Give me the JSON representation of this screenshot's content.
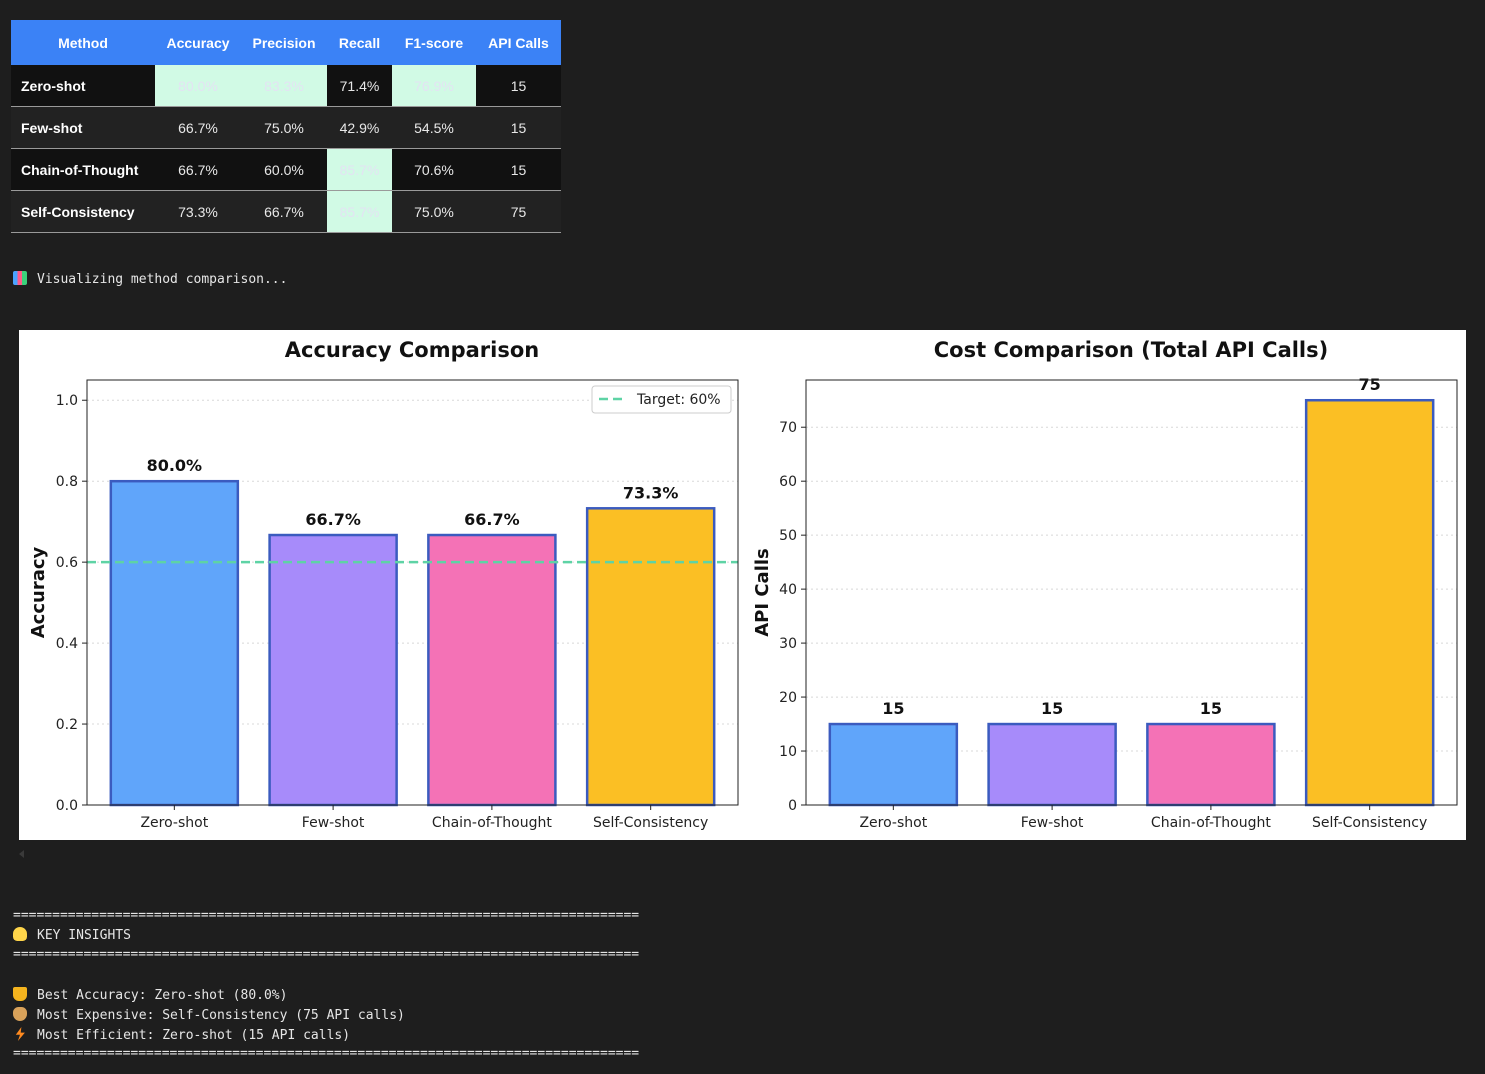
{
  "table": {
    "headers": [
      "Method",
      "Accuracy",
      "Precision",
      "Recall",
      "F1-score",
      "API Calls"
    ],
    "rows": [
      {
        "method": "Zero-shot",
        "accuracy": "80.0%",
        "precision": "83.3%",
        "recall": "71.4%",
        "f1": "76.9%",
        "api_calls": "15"
      },
      {
        "method": "Few-shot",
        "accuracy": "66.7%",
        "precision": "75.0%",
        "recall": "42.9%",
        "f1": "54.5%",
        "api_calls": "15"
      },
      {
        "method": "Chain-of-Thought",
        "accuracy": "66.7%",
        "precision": "60.0%",
        "recall": "85.7%",
        "f1": "70.6%",
        "api_calls": "15"
      },
      {
        "method": "Self-Consistency",
        "accuracy": "73.3%",
        "precision": "66.7%",
        "recall": "85.7%",
        "f1": "75.0%",
        "api_calls": "75"
      }
    ],
    "highlight_color": "#d1fae5",
    "header_color": "#3b82f6"
  },
  "console": {
    "visualizing": "Visualizing method comparison...",
    "separator": "================================================================================",
    "insights_title": "KEY INSIGHTS",
    "best_accuracy": "Best Accuracy: Zero-shot (80.0%)",
    "most_expensive": "Most Expensive: Self-Consistency (75 API calls)",
    "most_efficient": "Most Efficient: Zero-shot (15 API calls)",
    "icons": [
      "bar-chart-icon",
      "lightbulb-icon",
      "trophy-icon",
      "money-bag-icon",
      "lightning-icon"
    ]
  },
  "chart_data": [
    {
      "type": "bar",
      "title": "Accuracy Comparison",
      "xlabel": "",
      "ylabel": "Accuracy",
      "categories": [
        "Zero-shot",
        "Few-shot",
        "Chain-of-Thought",
        "Self-Consistency"
      ],
      "values": [
        0.8,
        0.667,
        0.667,
        0.733
      ],
      "value_labels": [
        "80.0%",
        "66.7%",
        "66.7%",
        "73.3%"
      ],
      "ylim": [
        0,
        1.05
      ],
      "yticks": [
        "0.0",
        "0.2",
        "0.4",
        "0.6",
        "0.8",
        "1.0"
      ],
      "ytick_values": [
        0,
        0.2,
        0.4,
        0.6,
        0.8,
        1.0
      ],
      "colors": [
        "#60a5fa",
        "#a78bfa",
        "#f472b6",
        "#fbbf24"
      ],
      "edge_color": "#3b5bbf",
      "reference_line": {
        "value": 0.6,
        "label": "Target: 60%",
        "color": "#5ed3a5"
      },
      "legend": "top-right",
      "grid": "y"
    },
    {
      "type": "bar",
      "title": "Cost Comparison (Total API Calls)",
      "xlabel": "",
      "ylabel": "API Calls",
      "categories": [
        "Zero-shot",
        "Few-shot",
        "Chain-of-Thought",
        "Self-Consistency"
      ],
      "values": [
        15,
        15,
        15,
        75
      ],
      "value_labels": [
        "15",
        "15",
        "15",
        "75"
      ],
      "ylim": [
        0,
        78.75
      ],
      "yticks": [
        "0",
        "10",
        "20",
        "30",
        "40",
        "50",
        "60",
        "70"
      ],
      "ytick_values": [
        0,
        10,
        20,
        30,
        40,
        50,
        60,
        70
      ],
      "colors": [
        "#60a5fa",
        "#a78bfa",
        "#f472b6",
        "#fbbf24"
      ],
      "edge_color": "#3b5bbf",
      "grid": "y"
    }
  ]
}
